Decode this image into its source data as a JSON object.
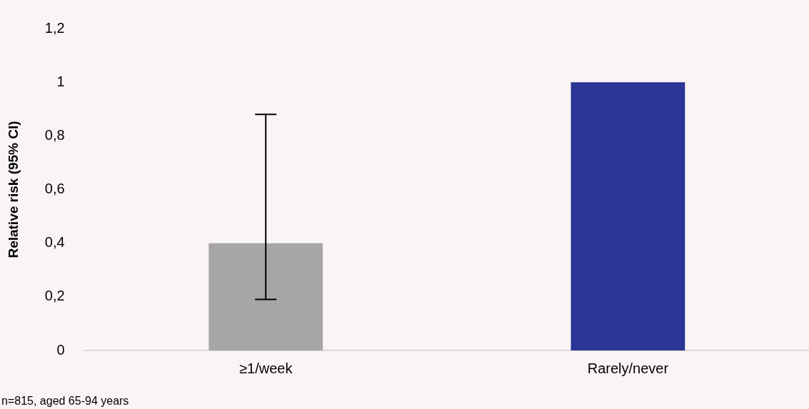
{
  "chart_data": {
    "type": "bar",
    "ylabel": "Relative risk (95% CI)",
    "categories": [
      "≥1/week",
      "Rarely/never"
    ],
    "values": [
      0.4,
      1
    ],
    "colors": [
      "#a6a6a6",
      "#2b3595"
    ],
    "errors": [
      [
        0.19,
        0.88
      ],
      null
    ],
    "ylim": [
      0,
      1.2
    ],
    "yticks": [
      {
        "value": 0,
        "label": "0"
      },
      {
        "value": 0.2,
        "label": "0,2"
      },
      {
        "value": 0.4,
        "label": "0,4"
      },
      {
        "value": 0.6,
        "label": "0,6"
      },
      {
        "value": 0.8,
        "label": "0,8"
      },
      {
        "value": 1,
        "label": "1"
      },
      {
        "value": 1.2,
        "label": "1,2"
      }
    ],
    "grid": false,
    "legend": false,
    "annotations": [
      "n=815, aged 65-94 years"
    ]
  }
}
